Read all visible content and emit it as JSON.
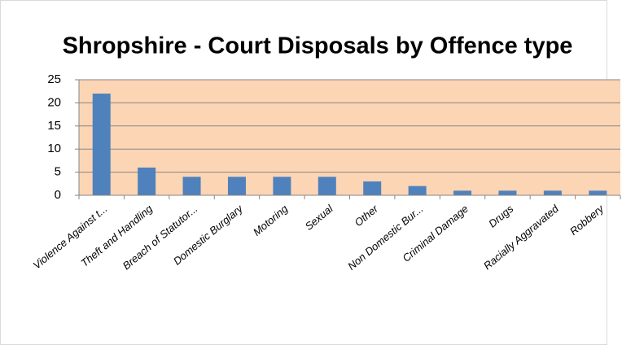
{
  "chart_data": {
    "type": "bar",
    "title": "Shropshire - Court Disposals by Offence type",
    "categories": [
      "Violence Against t...",
      "Theft and Handling",
      "Breach of Statutor...",
      "Domestic Burglary",
      "Motoring",
      "Sexual",
      "Other",
      "Non Domestic Bur...",
      "Criminal Damage",
      "Drugs",
      "Racially Aggravated",
      "Robbery"
    ],
    "values": [
      22,
      6,
      4,
      4,
      4,
      4,
      3,
      2,
      1,
      1,
      1,
      1
    ],
    "color": "#4f81bd",
    "plot_background": "#fcd5b4",
    "ylim": [
      0,
      25
    ],
    "yticks": [
      0,
      5,
      10,
      15,
      20,
      25
    ],
    "grid": true
  }
}
